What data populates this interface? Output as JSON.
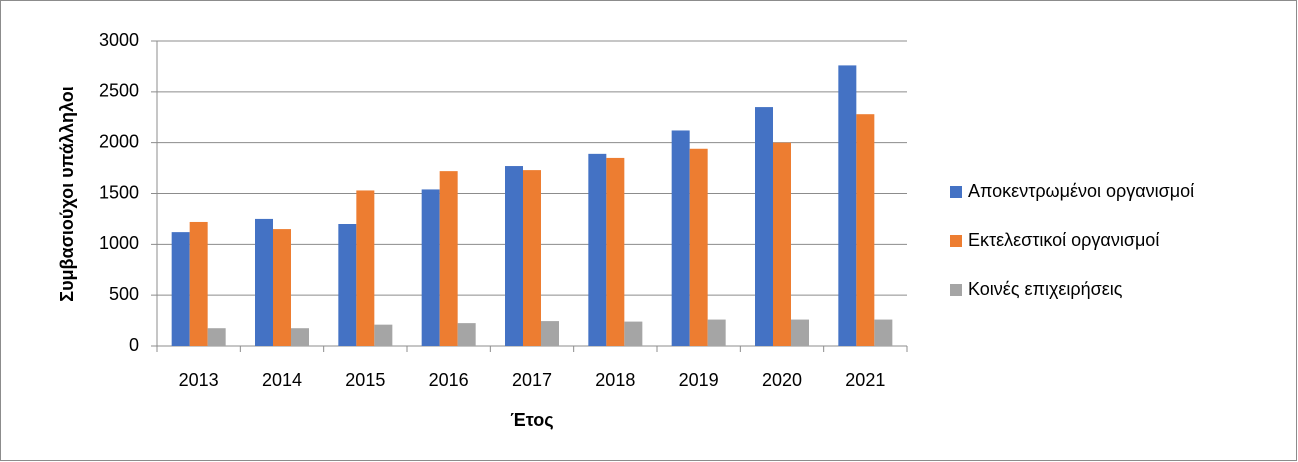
{
  "chart_data": {
    "type": "bar",
    "ylabel": "Συμβασιούχοι υπάλληλοι",
    "xlabel": "Έτος",
    "categories": [
      "2013",
      "2014",
      "2015",
      "2016",
      "2017",
      "2018",
      "2019",
      "2020",
      "2021"
    ],
    "series": [
      {
        "name": "Αποκεντρωμένοι οργανισμοί",
        "color": "#4472c4",
        "values": [
          1120,
          1250,
          1200,
          1540,
          1770,
          1890,
          2120,
          2350,
          2760
        ]
      },
      {
        "name": "Εκτελεστικοί οργανισμοί",
        "color": "#ed7d31",
        "values": [
          1220,
          1150,
          1530,
          1720,
          1730,
          1850,
          1940,
          2000,
          2280
        ]
      },
      {
        "name": "Κοινές επιχειρήσεις",
        "color": "#a5a5a5",
        "values": [
          175,
          175,
          210,
          225,
          245,
          240,
          260,
          260,
          260
        ]
      }
    ],
    "ylim": [
      0,
      3000
    ],
    "yticks": [
      0,
      500,
      1000,
      1500,
      2000,
      2500,
      3000
    ],
    "grid": true,
    "legend": "right"
  }
}
